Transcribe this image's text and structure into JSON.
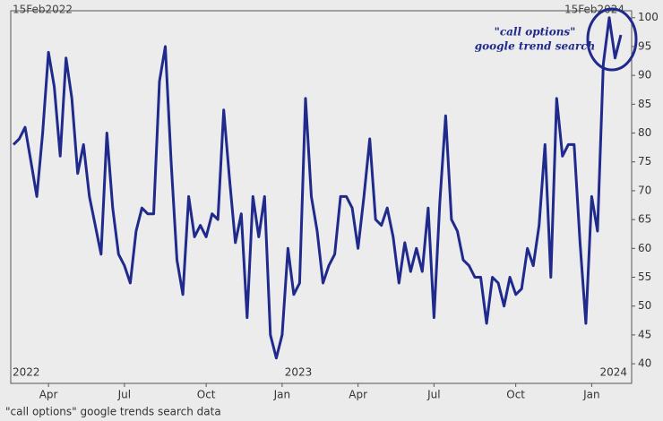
{
  "chart_data": {
    "type": "line",
    "caption": "\"call options\" google trends search data",
    "annotations": {
      "start": "15Feb2022",
      "end": "15Feb2024",
      "callout": [
        "\"call options\"",
        "google trend search"
      ],
      "years": [
        "2022",
        "2023",
        "2024"
      ]
    },
    "categories": [
      null,
      null,
      null,
      null,
      null,
      null,
      "Apr",
      null,
      null,
      null,
      null,
      null,
      null,
      null,
      null,
      null,
      null,
      null,
      null,
      "Jul",
      null,
      null,
      null,
      null,
      null,
      null,
      null,
      null,
      null,
      null,
      null,
      null,
      null,
      "Oct",
      null,
      null,
      null,
      null,
      null,
      null,
      null,
      null,
      null,
      null,
      null,
      null,
      "Jan",
      null,
      null,
      null,
      null,
      null,
      null,
      null,
      null,
      null,
      null,
      null,
      null,
      "Apr",
      null,
      null,
      null,
      null,
      null,
      null,
      null,
      null,
      null,
      null,
      null,
      null,
      "Jul",
      null,
      null,
      null,
      null,
      null,
      null,
      null,
      null,
      null,
      null,
      null,
      null,
      null,
      "Oct",
      null,
      null,
      null,
      null,
      null,
      null,
      null,
      null,
      null,
      null,
      null,
      null,
      "Jan",
      null,
      null,
      null,
      null,
      null
    ],
    "series": [
      {
        "name": "\"call options\" google trend search",
        "color": "#1f2a8c",
        "values": [
          78,
          79,
          81,
          75,
          69,
          80,
          94,
          88,
          76,
          93,
          86,
          73,
          78,
          69,
          64,
          59,
          80,
          67,
          59,
          57,
          54,
          63,
          67,
          66,
          66,
          89,
          95,
          75,
          58,
          52,
          69,
          62,
          64,
          62,
          66,
          65,
          84,
          72,
          61,
          66,
          48,
          69,
          62,
          69,
          45,
          41,
          45,
          60,
          52,
          54,
          86,
          69,
          63,
          54,
          57,
          59,
          69,
          69,
          67,
          60,
          69,
          79,
          65,
          64,
          67,
          62,
          54,
          61,
          56,
          60,
          56,
          67,
          48,
          68,
          83,
          65,
          63,
          58,
          57,
          55,
          55,
          47,
          55,
          54,
          50,
          55,
          52,
          53,
          60,
          57,
          64,
          78,
          55,
          86,
          76,
          78,
          78,
          61,
          47,
          69,
          63,
          92,
          100,
          93,
          97
        ]
      }
    ],
    "ylim": [
      36.6,
      101.2
    ],
    "yticks": [
      40,
      45,
      50,
      55,
      60,
      65,
      70,
      75,
      80,
      85,
      90,
      95,
      100
    ],
    "grid": false
  }
}
